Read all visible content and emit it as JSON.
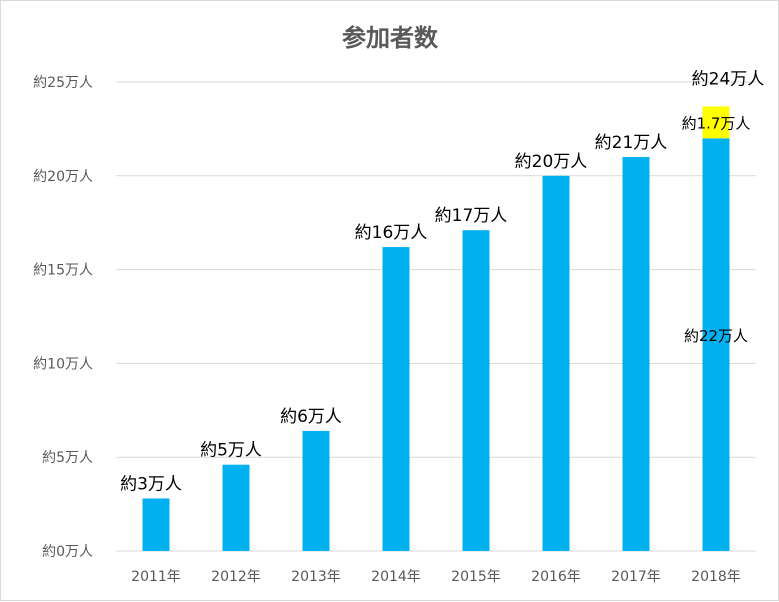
{
  "chart_data": {
    "type": "bar",
    "title": "参加者数",
    "categories": [
      "2011年",
      "2012年",
      "2013年",
      "2014年",
      "2015年",
      "2016年",
      "2017年",
      "2018年"
    ],
    "values": [
      2.8,
      4.6,
      6.4,
      16.2,
      17.1,
      20.0,
      21.0,
      23.7
    ],
    "value_labels": [
      "約3万人",
      "約5万人",
      "約6万人",
      "約16万人",
      "約17万人",
      "約20万人",
      "約21万人",
      "約24万人"
    ],
    "segments_2018": [
      {
        "value": 22.0,
        "label": "約22万人",
        "color": "#00b0f0"
      },
      {
        "value": 1.7,
        "label": "約1.7万人",
        "color": "#ffff00"
      }
    ],
    "yticks": [
      "約0万人",
      "約5万人",
      "約10万人",
      "約15万人",
      "約20万人",
      "約25万人"
    ],
    "ylim": [
      0,
      25
    ],
    "ystep": 5,
    "grid": true,
    "colors": {
      "bar": "#00b0f0",
      "highlight": "#ffff00"
    }
  }
}
